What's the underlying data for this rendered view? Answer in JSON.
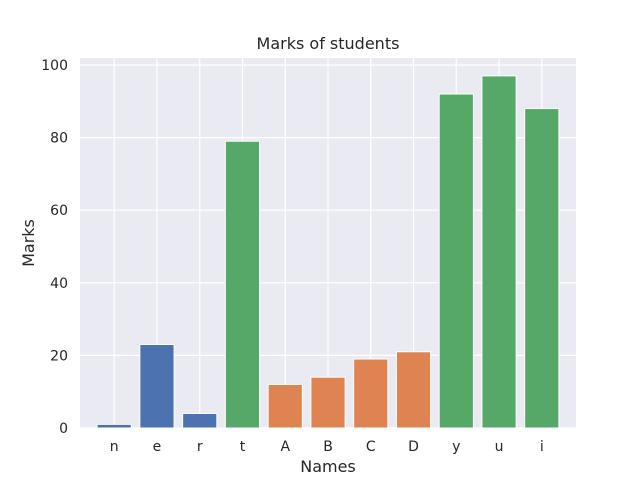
{
  "chart_data": {
    "type": "bar",
    "title": "Marks of students",
    "xlabel": "Names",
    "ylabel": "Marks",
    "ylim": [
      0,
      100
    ],
    "yticks": [
      0,
      20,
      40,
      60,
      80,
      100
    ],
    "grid": true,
    "categories": [
      "n",
      "e",
      "r",
      "t",
      "A",
      "B",
      "C",
      "D",
      "y",
      "u",
      "i"
    ],
    "values": [
      1,
      23,
      4,
      79,
      12,
      14,
      19,
      21,
      92,
      97,
      88
    ],
    "bar_colors": [
      "#4c72b0",
      "#4c72b0",
      "#4c72b0",
      "#55a868",
      "#dd8452",
      "#dd8452",
      "#dd8452",
      "#dd8452",
      "#55a868",
      "#55a868",
      "#55a868"
    ],
    "plot_background": "#eaeaf2",
    "grid_color": "#ffffff"
  }
}
